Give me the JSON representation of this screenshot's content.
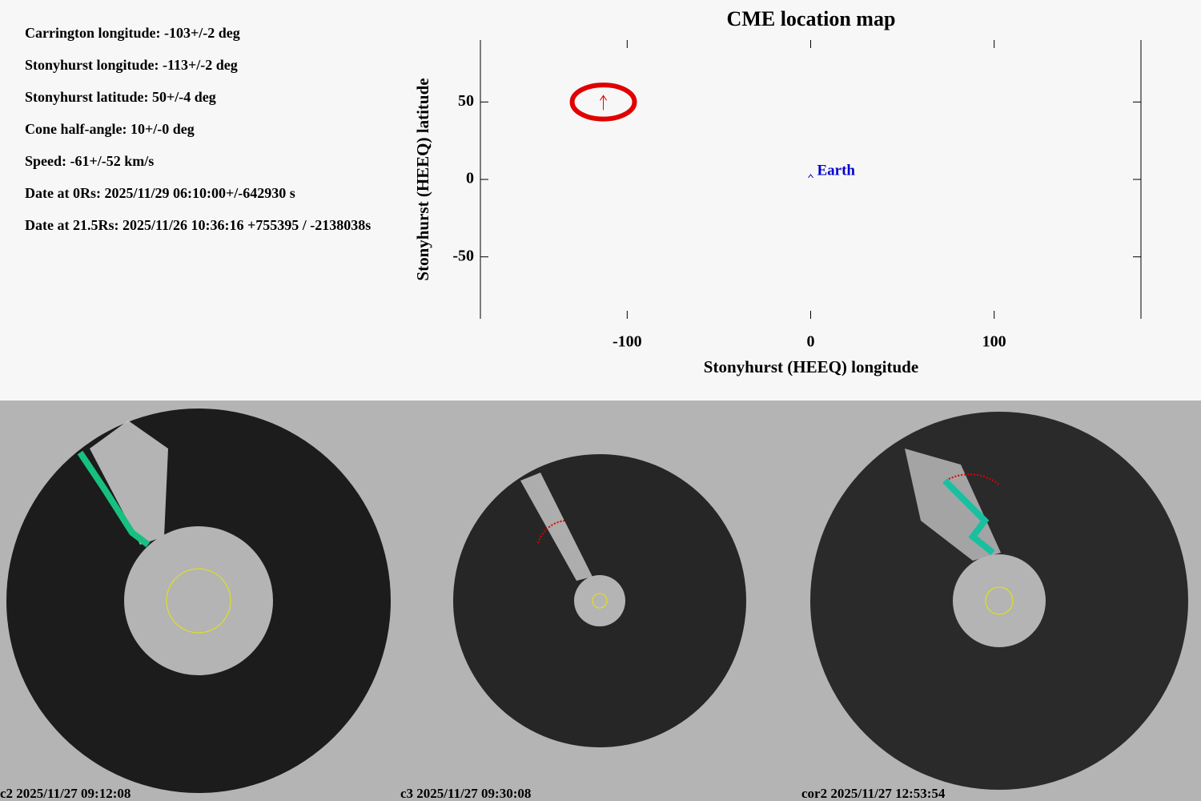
{
  "info": [
    "Carrington longitude: -103+/-2 deg",
    "Stonyhurst longitude: -113+/-2 deg",
    "Stonyhurst latitude: 50+/-4 deg",
    "Cone half-angle: 10+/-0 deg",
    "Speed: -61+/-52 km/s",
    "Date at 0Rs: 2025/11/29 06:10:00+/-642930 s",
    "Date at 21.5Rs: 2025/11/26 10:36:16 +755395 / -2138038s"
  ],
  "chart_data": {
    "type": "scatter",
    "title": "CME location map",
    "x_label": "Stonyhurst (HEEQ) longitude",
    "y_label": "Stonyhurst (HEEQ) latitude",
    "xlim": [
      -180,
      180
    ],
    "ylim": [
      -90,
      90
    ],
    "xticks": [
      -100,
      0,
      100
    ],
    "yticks": [
      -50,
      0,
      50
    ],
    "series": [
      {
        "color": "#e00000",
        "x": [
          -113
        ],
        "values": [
          50
        ],
        "ellipse_x_radius": 17,
        "ellipse_y_radius": 11
      },
      {
        "name": "Earth",
        "color": "#0000cc",
        "x": [
          0
        ],
        "values": [
          0
        ]
      }
    ]
  },
  "images": [
    "c2 2025/11/27 09:12:08",
    "c3 2025/11/27 09:30:08",
    "cor2 2025/11/27 12:53:54"
  ]
}
